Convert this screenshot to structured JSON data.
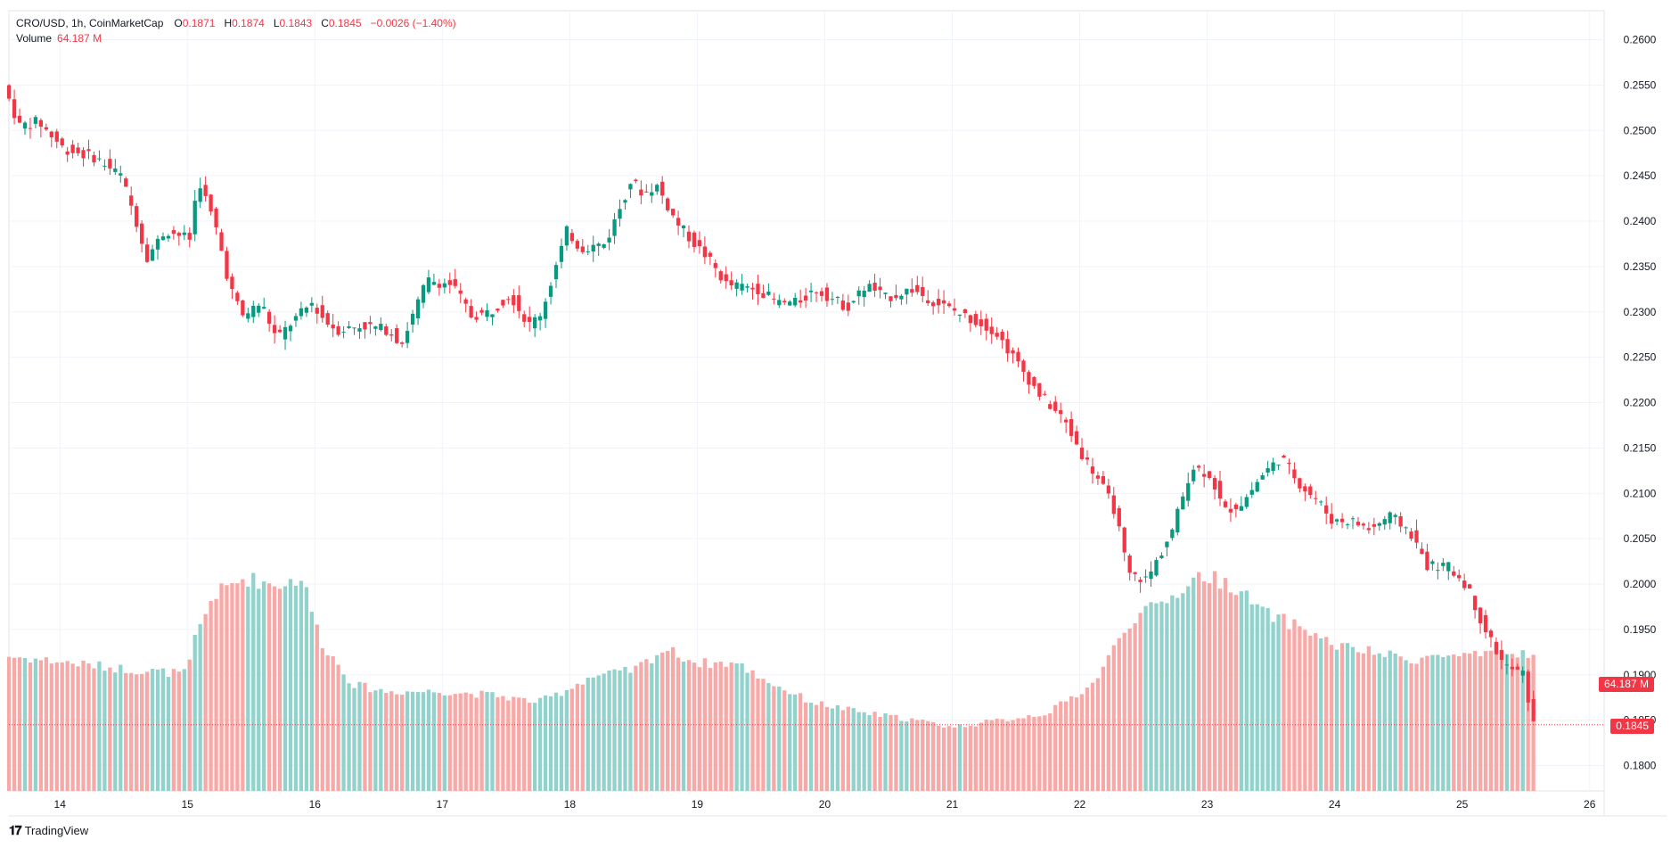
{
  "header": {
    "symbol": "CRO/USD, 1h, CoinMarketCap",
    "o_label": "O",
    "o_value": "0.1871",
    "h_label": "H",
    "h_value": "0.1874",
    "l_label": "L",
    "l_value": "0.1843",
    "c_label": "C",
    "c_value": "0.1845",
    "change": "−0.0026 (−1.40%)",
    "volume_label": "Volume",
    "volume_value": "64.187 M"
  },
  "branding": {
    "text": "TradingView"
  },
  "last_price_tag": "0.1845",
  "volume_tag": "64.187 M",
  "colors": {
    "up": "#089981",
    "down": "#f23645",
    "up_vol": "#92d2cc",
    "down_vol": "#f7a9a7",
    "grid": "#f0f3fa"
  },
  "chart_data": {
    "type": "candlestick",
    "title": "CRO/USD, 1h, CoinMarketCap",
    "interval": "1h",
    "y_axis": {
      "ticks": [
        "0.1800",
        "0.1850",
        "0.1900",
        "0.1950",
        "0.2000",
        "0.2050",
        "0.2100",
        "0.2150",
        "0.2200",
        "0.2250",
        "0.2300",
        "0.2350",
        "0.2400",
        "0.2450",
        "0.2500",
        "0.2550",
        "0.2600"
      ],
      "range": [
        0.1772,
        0.2632
      ]
    },
    "x_axis": {
      "ticks": [
        "14",
        "15",
        "16",
        "17",
        "18",
        "19",
        "20",
        "21",
        "22",
        "23",
        "24",
        "25",
        "26"
      ],
      "range_days": [
        13.6,
        26.1
      ]
    },
    "price_path": [
      [
        13.58,
        0.255
      ],
      [
        13.7,
        0.2505
      ],
      [
        13.85,
        0.251
      ],
      [
        14.05,
        0.248
      ],
      [
        14.3,
        0.247
      ],
      [
        14.5,
        0.245
      ],
      [
        14.62,
        0.24
      ],
      [
        14.7,
        0.236
      ],
      [
        14.85,
        0.239
      ],
      [
        15.05,
        0.238
      ],
      [
        15.1,
        0.245
      ],
      [
        15.25,
        0.239
      ],
      [
        15.35,
        0.233
      ],
      [
        15.45,
        0.2295
      ],
      [
        15.6,
        0.231
      ],
      [
        15.72,
        0.227
      ],
      [
        15.85,
        0.229
      ],
      [
        16.0,
        0.231
      ],
      [
        16.1,
        0.229
      ],
      [
        16.2,
        0.228
      ],
      [
        16.4,
        0.2285
      ],
      [
        16.6,
        0.228
      ],
      [
        16.7,
        0.2265
      ],
      [
        16.8,
        0.23
      ],
      [
        16.9,
        0.2335
      ],
      [
        17.1,
        0.233
      ],
      [
        17.25,
        0.2295
      ],
      [
        17.4,
        0.23
      ],
      [
        17.55,
        0.232
      ],
      [
        17.7,
        0.2285
      ],
      [
        17.8,
        0.23
      ],
      [
        17.9,
        0.2345
      ],
      [
        18.0,
        0.239
      ],
      [
        18.1,
        0.237
      ],
      [
        18.3,
        0.2375
      ],
      [
        18.4,
        0.241
      ],
      [
        18.5,
        0.2445
      ],
      [
        18.6,
        0.243
      ],
      [
        18.7,
        0.244
      ],
      [
        18.85,
        0.24
      ],
      [
        19.0,
        0.2375
      ],
      [
        19.1,
        0.236
      ],
      [
        19.25,
        0.233
      ],
      [
        19.5,
        0.2325
      ],
      [
        19.65,
        0.231
      ],
      [
        19.8,
        0.231
      ],
      [
        19.95,
        0.2325
      ],
      [
        20.2,
        0.2305
      ],
      [
        20.35,
        0.233
      ],
      [
        20.5,
        0.2315
      ],
      [
        20.7,
        0.2325
      ],
      [
        20.9,
        0.231
      ],
      [
        21.05,
        0.23
      ],
      [
        21.2,
        0.229
      ],
      [
        21.35,
        0.228
      ],
      [
        21.5,
        0.225
      ],
      [
        21.7,
        0.221
      ],
      [
        21.9,
        0.218
      ],
      [
        22.05,
        0.214
      ],
      [
        22.15,
        0.212
      ],
      [
        22.3,
        0.208
      ],
      [
        22.4,
        0.201
      ],
      [
        22.55,
        0.2005
      ],
      [
        22.75,
        0.206
      ],
      [
        22.9,
        0.213
      ],
      [
        23.05,
        0.212
      ],
      [
        23.15,
        0.208
      ],
      [
        23.3,
        0.209
      ],
      [
        23.45,
        0.212
      ],
      [
        23.6,
        0.214
      ],
      [
        23.75,
        0.211
      ],
      [
        23.9,
        0.209
      ],
      [
        24.0,
        0.207
      ],
      [
        24.15,
        0.207
      ],
      [
        24.3,
        0.206
      ],
      [
        24.45,
        0.2075
      ],
      [
        24.6,
        0.206
      ],
      [
        24.75,
        0.202
      ],
      [
        24.9,
        0.202
      ],
      [
        25.05,
        0.2
      ],
      [
        25.2,
        0.195
      ],
      [
        25.35,
        0.191
      ],
      [
        25.5,
        0.19
      ],
      [
        25.58,
        0.1845
      ]
    ],
    "volume_profile": [
      [
        13.58,
        0.38
      ],
      [
        14.1,
        0.36
      ],
      [
        14.6,
        0.34
      ],
      [
        15.0,
        0.33
      ],
      [
        15.05,
        0.42
      ],
      [
        15.2,
        0.55
      ],
      [
        15.45,
        0.6
      ],
      [
        15.7,
        0.58
      ],
      [
        15.9,
        0.6
      ],
      [
        16.05,
        0.42
      ],
      [
        16.3,
        0.3
      ],
      [
        16.55,
        0.28
      ],
      [
        17.0,
        0.28
      ],
      [
        17.4,
        0.27
      ],
      [
        17.75,
        0.25
      ],
      [
        17.95,
        0.28
      ],
      [
        18.15,
        0.32
      ],
      [
        18.5,
        0.34
      ],
      [
        18.75,
        0.4
      ],
      [
        19.0,
        0.36
      ],
      [
        19.3,
        0.36
      ],
      [
        19.6,
        0.3
      ],
      [
        19.9,
        0.25
      ],
      [
        20.3,
        0.22
      ],
      [
        20.7,
        0.2
      ],
      [
        21.0,
        0.18
      ],
      [
        21.4,
        0.2
      ],
      [
        21.75,
        0.22
      ],
      [
        22.1,
        0.3
      ],
      [
        22.4,
        0.48
      ],
      [
        22.7,
        0.54
      ],
      [
        22.95,
        0.61
      ],
      [
        23.2,
        0.58
      ],
      [
        23.45,
        0.5
      ],
      [
        23.75,
        0.46
      ],
      [
        24.0,
        0.41
      ],
      [
        24.3,
        0.39
      ],
      [
        24.6,
        0.37
      ],
      [
        24.8,
        0.38
      ],
      [
        25.2,
        0.38
      ],
      [
        25.58,
        0.39
      ]
    ]
  }
}
